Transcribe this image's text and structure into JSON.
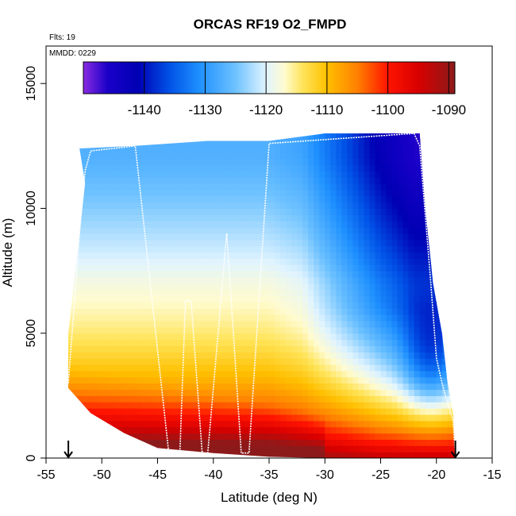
{
  "chart_data": {
    "type": "heatmap",
    "title": "ORCAS RF19 O2_FMPD",
    "xlabel": "Latitude (deg N)",
    "ylabel": "Altitude (m)",
    "xlim": [
      -55,
      -15
    ],
    "ylim": [
      0,
      16500
    ],
    "x_ticks": [
      -55,
      -50,
      -45,
      -40,
      -35,
      -30,
      -25,
      -20,
      -15
    ],
    "y_ticks": [
      0,
      5000,
      10000,
      15000
    ],
    "annotations": {
      "flights": "Flts: 19",
      "mmdd": "MMDD: 0229"
    },
    "colorbar": {
      "range": [
        -1150,
        -1089
      ],
      "ticks": [
        -1140,
        -1130,
        -1120,
        -1110,
        -1100,
        -1090
      ],
      "color_stops": [
        {
          "v": -1150,
          "c": "#8a2be2"
        },
        {
          "v": -1146,
          "c": "#1a00c8"
        },
        {
          "v": -1141,
          "c": "#0000b4"
        },
        {
          "v": -1136,
          "c": "#0050e6"
        },
        {
          "v": -1131,
          "c": "#1e90ff"
        },
        {
          "v": -1125,
          "c": "#6ec2ff"
        },
        {
          "v": -1120,
          "c": "#e0f4ff"
        },
        {
          "v": -1117,
          "c": "#fffbd0"
        },
        {
          "v": -1114,
          "c": "#ffe45a"
        },
        {
          "v": -1110,
          "c": "#ffc000"
        },
        {
          "v": -1105,
          "c": "#ff8000"
        },
        {
          "v": -1100,
          "c": "#ff1400"
        },
        {
          "v": -1095,
          "c": "#d80000"
        },
        {
          "v": -1089,
          "c": "#8c1a1a"
        }
      ]
    },
    "top_boundary": [
      [
        -52,
        12400
      ],
      [
        -47,
        12500
      ],
      [
        -40.5,
        12700
      ],
      [
        -35,
        12700
      ],
      [
        -30,
        13000
      ],
      [
        -21.5,
        13000
      ]
    ],
    "left_boundary": [
      [
        -52,
        12400
      ],
      [
        -51.5,
        11000
      ],
      [
        -52,
        9000
      ],
      [
        -52.5,
        7000
      ],
      [
        -53,
        5000
      ],
      [
        -53,
        2800
      ]
    ],
    "right_boundary": [
      [
        -21.5,
        13000
      ],
      [
        -21,
        10000
      ],
      [
        -20.3,
        7000
      ],
      [
        -19.5,
        5000
      ],
      [
        -19,
        3000
      ],
      [
        -18.5,
        1800
      ],
      [
        -18.3,
        0
      ]
    ],
    "bottom_boundary": [
      [
        -53,
        2800
      ],
      [
        -51,
        1800
      ],
      [
        -48,
        1000
      ],
      [
        -45,
        400
      ],
      [
        -40,
        200
      ],
      [
        -35,
        50
      ],
      [
        -30,
        0
      ],
      [
        -18.3,
        0
      ]
    ],
    "flight_track": [
      [
        -53,
        3000
      ],
      [
        -52,
        9000
      ],
      [
        -51.5,
        11500
      ],
      [
        -51,
        12300
      ],
      [
        -47,
        12500
      ],
      [
        -44,
        200
      ],
      [
        -43,
        200
      ],
      [
        -42.5,
        6300
      ],
      [
        -42,
        6300
      ],
      [
        -41,
        200
      ],
      [
        -40.5,
        200
      ],
      [
        -38.8,
        9000
      ],
      [
        -37.5,
        200
      ],
      [
        -36.8,
        200
      ],
      [
        -35,
        12600
      ],
      [
        -22,
        13000
      ],
      [
        -21.5,
        12500
      ],
      [
        -20.5,
        7000
      ],
      [
        -20,
        4000
      ],
      [
        -19.5,
        3000
      ],
      [
        -19,
        2200
      ],
      [
        -18.5,
        1500
      ],
      [
        -18.3,
        100
      ]
    ],
    "arrows_at_lat": [
      -53,
      -18.3
    ]
  }
}
